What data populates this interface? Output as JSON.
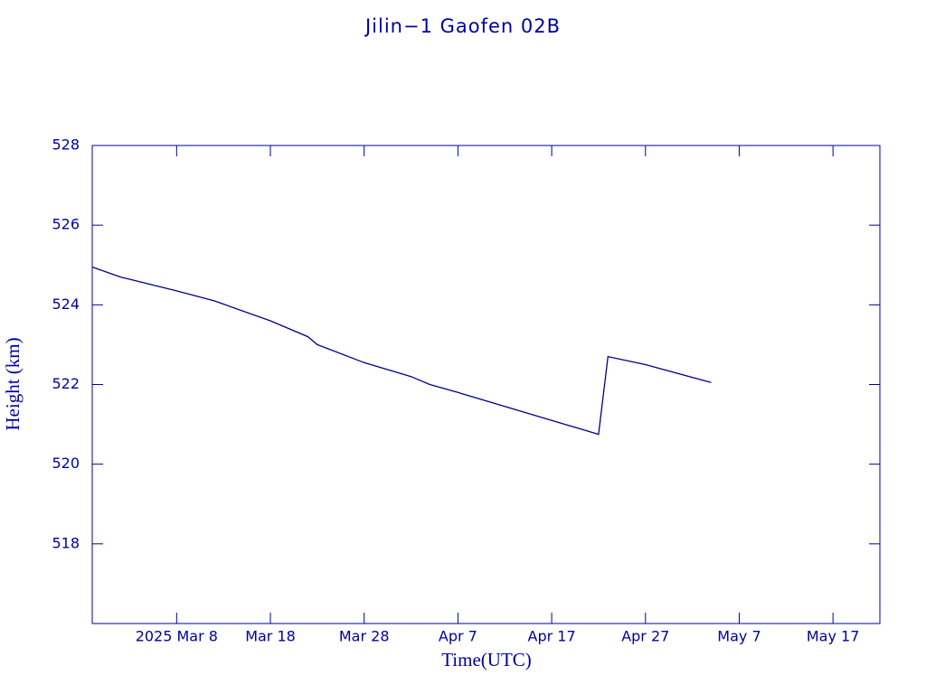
{
  "chart_data": {
    "type": "line",
    "title": "Jilin−1 Gaofen 02B",
    "xlabel": "Time(UTC)",
    "ylabel": "Height (km)",
    "color": "#00008b",
    "xlim": [
      "2025-02-27",
      "2025-05-22"
    ],
    "ylim": [
      516,
      528
    ],
    "yticks": [
      518,
      520,
      522,
      524,
      526,
      528
    ],
    "xticks": [
      {
        "value": "2025-03-08",
        "label": "2025 Mar  8"
      },
      {
        "value": "2025-03-18",
        "label": "Mar 18"
      },
      {
        "value": "2025-03-28",
        "label": "Mar 28"
      },
      {
        "value": "2025-04-07",
        "label": "Apr  7"
      },
      {
        "value": "2025-04-17",
        "label": "Apr 17"
      },
      {
        "value": "2025-04-27",
        "label": "Apr 27"
      },
      {
        "value": "2025-05-07",
        "label": "May  7"
      },
      {
        "value": "2025-05-17",
        "label": "May 17"
      }
    ],
    "x": [
      "2025-02-27",
      "2025-03-02",
      "2025-03-08",
      "2025-03-12",
      "2025-03-18",
      "2025-03-22",
      "2025-03-23",
      "2025-03-28",
      "2025-04-02",
      "2025-04-04",
      "2025-04-07",
      "2025-04-12",
      "2025-04-17",
      "2025-04-22",
      "2025-04-23",
      "2025-04-27",
      "2025-05-04"
    ],
    "values": [
      524.95,
      524.7,
      524.35,
      524.1,
      523.6,
      523.2,
      523.0,
      522.55,
      522.2,
      522.0,
      521.8,
      521.45,
      521.1,
      520.75,
      522.7,
      522.5,
      522.05
    ]
  }
}
